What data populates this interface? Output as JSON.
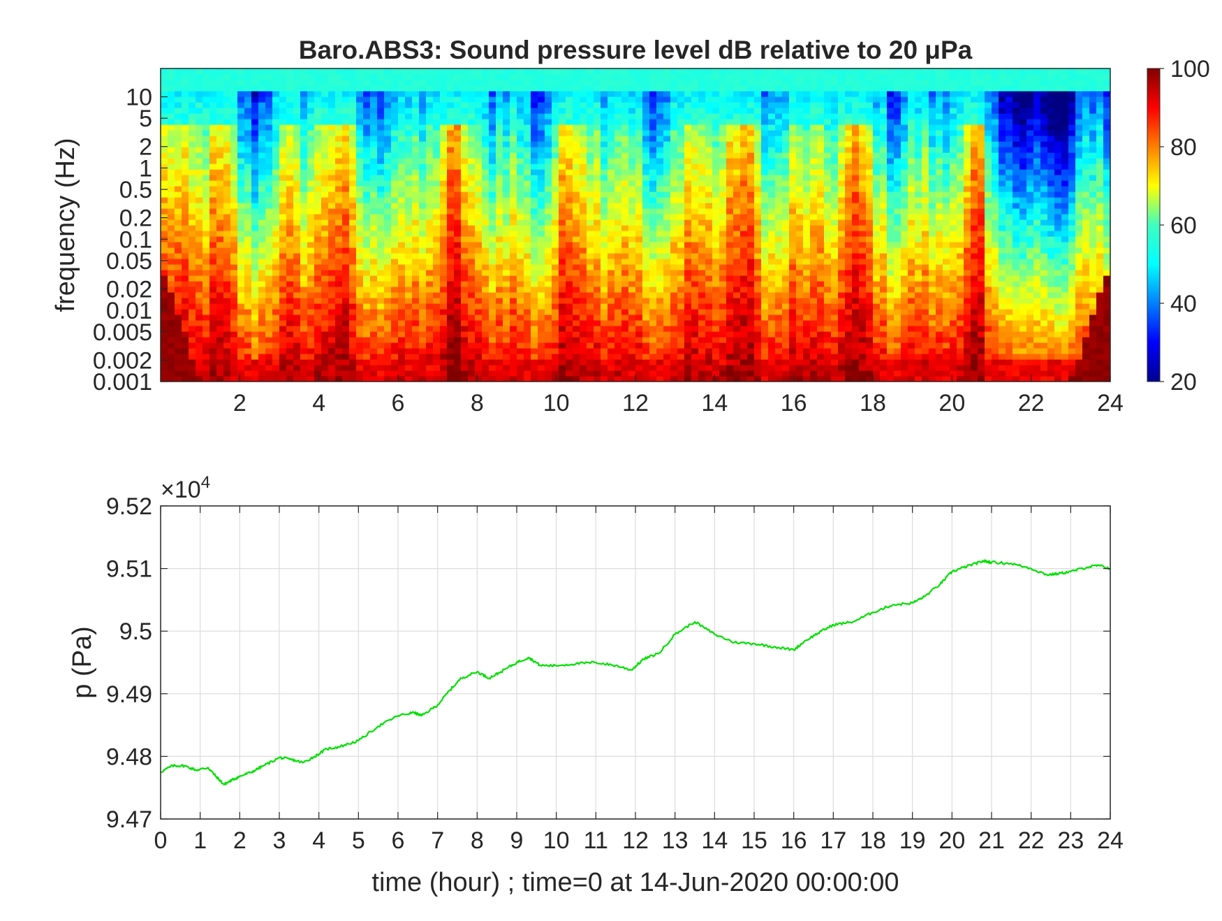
{
  "chart_data": [
    {
      "type": "heatmap",
      "title": "Baro.ABS3: Sound pressure level dB relative to 20 μPa",
      "xlabel": "",
      "ylabel": "frequency (Hz)",
      "yscale": "log",
      "x_ticks": [
        "2",
        "4",
        "6",
        "8",
        "10",
        "12",
        "14",
        "16",
        "18",
        "20",
        "22",
        "24"
      ],
      "y_ticks": [
        "10",
        "5",
        "2",
        "1",
        "0.5",
        "0.2",
        "0.1",
        "0.05",
        "0.02",
        "0.01",
        "0.005",
        "0.002",
        "0.001"
      ],
      "xlim": [
        0,
        24
      ],
      "ylim": [
        0.001,
        25
      ],
      "colormap": "jet",
      "colorbar": {
        "range": [
          20,
          100
        ],
        "ticks": [
          "100",
          "80",
          "60",
          "40",
          "20"
        ]
      },
      "colors": {
        "low": "#00008f",
        "mid": "#40ffbf",
        "high": "#800000",
        "top_band": "#20e8f8"
      }
    },
    {
      "type": "line",
      "title": "",
      "xlabel": "time (hour) ; time=0 at 14-Jun-2020 00:00:00",
      "ylabel": "p (Pa)",
      "exponent_label": "×10",
      "exponent_power": "4",
      "x_ticks": [
        "0",
        "1",
        "2",
        "3",
        "4",
        "5",
        "6",
        "7",
        "8",
        "9",
        "10",
        "11",
        "12",
        "13",
        "14",
        "15",
        "16",
        "17",
        "18",
        "19",
        "20",
        "21",
        "22",
        "23",
        "24"
      ],
      "y_ticks": [
        "9.52",
        "9.51",
        "9.5",
        "9.49",
        "9.48",
        "9.47"
      ],
      "xlim": [
        0,
        24
      ],
      "ylim": [
        94700,
        95200
      ],
      "grid": true,
      "series": [
        {
          "color": "#00e000",
          "x": [
            0,
            0.3,
            0.6,
            0.9,
            1.2,
            1.4,
            1.6,
            1.8,
            2.0,
            2.3,
            2.6,
            3.0,
            3.3,
            3.6,
            3.9,
            4.2,
            4.5,
            5.0,
            5.5,
            6.0,
            6.4,
            6.6,
            7.0,
            7.3,
            7.6,
            8.0,
            8.3,
            8.6,
            9.0,
            9.3,
            9.6,
            10.0,
            10.5,
            11.0,
            11.5,
            11.9,
            12.2,
            12.6,
            13.0,
            13.5,
            14.0,
            14.5,
            15.0,
            15.5,
            16.0,
            16.3,
            16.7,
            17.0,
            17.5,
            18.0,
            18.5,
            19.0,
            19.3,
            19.7,
            20.0,
            20.3,
            20.6,
            20.8,
            21.0,
            21.5,
            22.0,
            22.4,
            22.7,
            23.0,
            23.4,
            23.7,
            24.0
          ],
          "y": [
            94775,
            94785,
            94785,
            94778,
            94782,
            94768,
            94755,
            94762,
            94768,
            94775,
            94785,
            94798,
            94795,
            94790,
            94800,
            94812,
            94815,
            94825,
            94848,
            94865,
            94870,
            94865,
            94882,
            94905,
            94925,
            94935,
            94925,
            94935,
            94950,
            94958,
            94945,
            94945,
            94948,
            94950,
            94945,
            94938,
            94955,
            94965,
            94995,
            95015,
            94995,
            94982,
            94980,
            94975,
            94970,
            94985,
            95000,
            95010,
            95015,
            95030,
            95042,
            95045,
            95055,
            95075,
            95095,
            95102,
            95108,
            95112,
            95110,
            95108,
            95100,
            95090,
            95092,
            95095,
            95102,
            95105,
            95100
          ]
        }
      ]
    }
  ]
}
